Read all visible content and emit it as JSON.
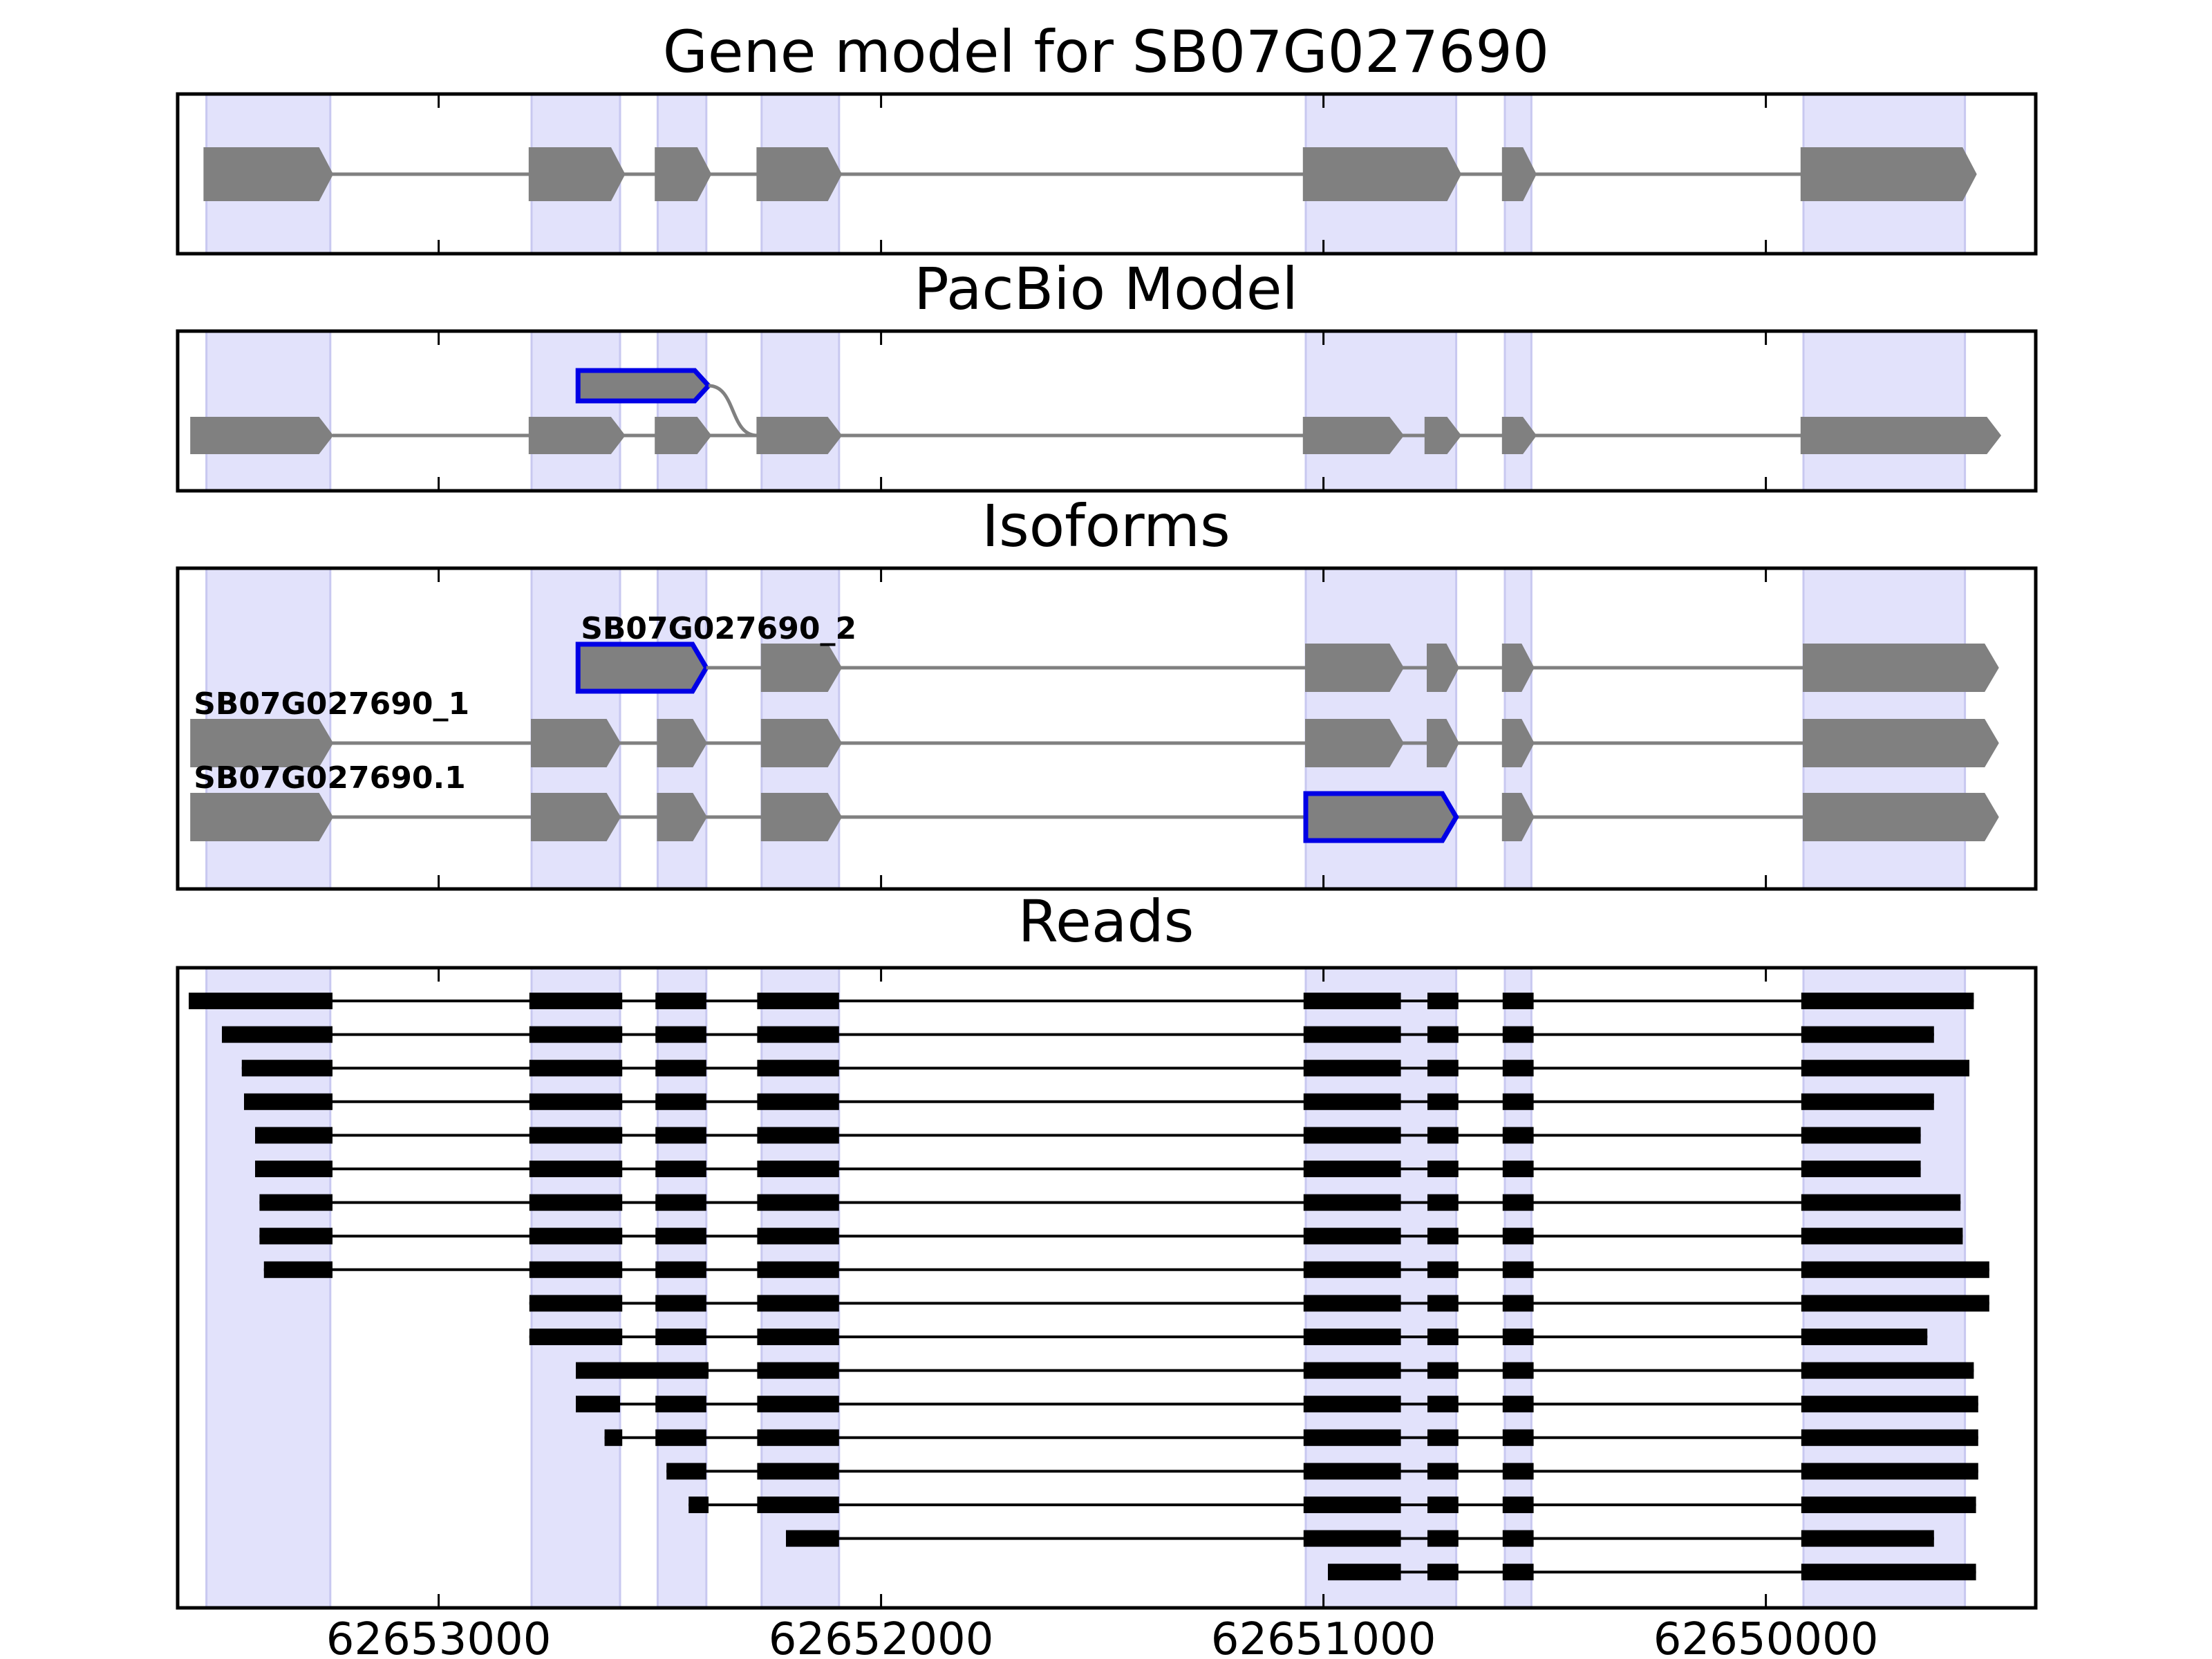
{
  "colors": {
    "exon_band": "#e2e2fb",
    "exon_band_edge": "#c8c8f0",
    "feature_fill": "#808080",
    "intron_line": "#808080",
    "highlight": "#0000e6",
    "read": "#000000",
    "frame": "#000000"
  },
  "x_ticks": [
    {
      "value": 62653000,
      "label": "62653000"
    },
    {
      "value": 62652000,
      "label": "62652000"
    },
    {
      "value": 62651000,
      "label": "62651000"
    },
    {
      "value": 62650000,
      "label": "62650000"
    }
  ],
  "exon_bands": [
    [
      62653525,
      62653245
    ],
    [
      62652790,
      62652590
    ],
    [
      62652505,
      62652395
    ],
    [
      62652270,
      62652095
    ],
    [
      62651040,
      62650700
    ],
    [
      62650590,
      62650530
    ],
    [
      62649915,
      62649550
    ]
  ],
  "panels": [
    {
      "id": "gene-model",
      "title": "Gene model for SB07G027690",
      "tracks": [
        {
          "label": "",
          "strand": "-",
          "exons": [
            [
              62653530,
              62653240
            ],
            [
              62652795,
              62652580
            ],
            [
              62652510,
              62652385
            ],
            [
              62652280,
              62652090
            ],
            [
              62651045,
              62650690
            ],
            [
              62650595,
              62650520
            ],
            [
              62649920,
              62649525
            ]
          ]
        }
      ]
    },
    {
      "id": "pacbio-model",
      "title": "PacBio Model",
      "tracks": [
        {
          "label": "",
          "strand": "-",
          "highlight_exons": [
            0
          ],
          "exons": [
            [
              62652685,
              62652390
            ]
          ]
        },
        {
          "label": "",
          "strand": "-",
          "exons": [
            [
              62653560,
              62653240
            ],
            [
              62652795,
              62652580
            ],
            [
              62652510,
              62652385
            ],
            [
              62652280,
              62652090
            ],
            [
              62651045,
              62650820
            ],
            [
              62650770,
              62650690
            ],
            [
              62650595,
              62650520
            ],
            [
              62649920,
              62649470
            ]
          ]
        }
      ]
    },
    {
      "id": "isoforms",
      "title": "Isoforms",
      "tracks": [
        {
          "label": "SB07G027690_2",
          "strand": "-",
          "highlight_exons": [
            0
          ],
          "exons": [
            [
              62652685,
              62652395
            ],
            [
              62652270,
              62652090
            ],
            [
              62651040,
              62650820
            ],
            [
              62650765,
              62650695
            ],
            [
              62650595,
              62650525
            ],
            [
              62649915,
              62649475
            ]
          ]
        },
        {
          "label": "SB07G027690_1",
          "strand": "-",
          "exons": [
            [
              62653560,
              62653240
            ],
            [
              62652790,
              62652590
            ],
            [
              62652505,
              62652395
            ],
            [
              62652270,
              62652090
            ],
            [
              62651040,
              62650820
            ],
            [
              62650765,
              62650695
            ],
            [
              62650595,
              62650525
            ],
            [
              62649915,
              62649475
            ]
          ]
        },
        {
          "label": "SB07G027690.1",
          "strand": "-",
          "highlight_exons": [
            4
          ],
          "exons": [
            [
              62653560,
              62653240
            ],
            [
              62652790,
              62652590
            ],
            [
              62652505,
              62652395
            ],
            [
              62652270,
              62652090
            ],
            [
              62651040,
              62650700
            ],
            [
              62650595,
              62650525
            ],
            [
              62649915,
              62649475
            ]
          ]
        }
      ]
    },
    {
      "id": "reads",
      "title": "Reads",
      "reads": [
        [
          [
            62653565,
            62653240
          ],
          [
            62652795,
            62652585
          ],
          [
            62652510,
            62652395
          ],
          [
            62652280,
            62652095
          ],
          [
            62651045,
            62650825
          ],
          [
            62650765,
            62650695
          ],
          [
            62650595,
            62650525
          ],
          [
            62649920,
            62649530
          ]
        ],
        [
          [
            62653490,
            62653240
          ],
          [
            62652795,
            62652585
          ],
          [
            62652510,
            62652395
          ],
          [
            62652280,
            62652095
          ],
          [
            62651045,
            62650825
          ],
          [
            62650765,
            62650695
          ],
          [
            62650595,
            62650525
          ],
          [
            62649920,
            62649620
          ]
        ],
        [
          [
            62653445,
            62653240
          ],
          [
            62652795,
            62652585
          ],
          [
            62652510,
            62652395
          ],
          [
            62652280,
            62652095
          ],
          [
            62651045,
            62650825
          ],
          [
            62650765,
            62650695
          ],
          [
            62650595,
            62650525
          ],
          [
            62649920,
            62649540
          ]
        ],
        [
          [
            62653440,
            62653240
          ],
          [
            62652795,
            62652585
          ],
          [
            62652510,
            62652395
          ],
          [
            62652280,
            62652095
          ],
          [
            62651045,
            62650825
          ],
          [
            62650765,
            62650695
          ],
          [
            62650595,
            62650525
          ],
          [
            62649920,
            62649620
          ]
        ],
        [
          [
            62653415,
            62653240
          ],
          [
            62652795,
            62652585
          ],
          [
            62652510,
            62652395
          ],
          [
            62652280,
            62652095
          ],
          [
            62651045,
            62650825
          ],
          [
            62650765,
            62650695
          ],
          [
            62650595,
            62650525
          ],
          [
            62649920,
            62649650
          ]
        ],
        [
          [
            62653415,
            62653240
          ],
          [
            62652795,
            62652585
          ],
          [
            62652510,
            62652395
          ],
          [
            62652280,
            62652095
          ],
          [
            62651045,
            62650825
          ],
          [
            62650765,
            62650695
          ],
          [
            62650595,
            62650525
          ],
          [
            62649920,
            62649650
          ]
        ],
        [
          [
            62653405,
            62653240
          ],
          [
            62652795,
            62652585
          ],
          [
            62652510,
            62652395
          ],
          [
            62652280,
            62652095
          ],
          [
            62651045,
            62650825
          ],
          [
            62650765,
            62650695
          ],
          [
            62650595,
            62650525
          ],
          [
            62649920,
            62649560
          ]
        ],
        [
          [
            62653405,
            62653240
          ],
          [
            62652795,
            62652585
          ],
          [
            62652510,
            62652395
          ],
          [
            62652280,
            62652095
          ],
          [
            62651045,
            62650825
          ],
          [
            62650765,
            62650695
          ],
          [
            62650595,
            62650525
          ],
          [
            62649920,
            62649555
          ]
        ],
        [
          [
            62653395,
            62653240
          ],
          [
            62652795,
            62652585
          ],
          [
            62652510,
            62652395
          ],
          [
            62652280,
            62652095
          ],
          [
            62651045,
            62650825
          ],
          [
            62650765,
            62650695
          ],
          [
            62650595,
            62650525
          ],
          [
            62649920,
            62649495
          ]
        ],
        [
          [
            62652795,
            62652585
          ],
          [
            62652510,
            62652395
          ],
          [
            62652280,
            62652095
          ],
          [
            62651045,
            62650825
          ],
          [
            62650765,
            62650695
          ],
          [
            62650595,
            62650525
          ],
          [
            62649920,
            62649495
          ]
        ],
        [
          [
            62652795,
            62652585
          ],
          [
            62652510,
            62652395
          ],
          [
            62652280,
            62652095
          ],
          [
            62651045,
            62650825
          ],
          [
            62650765,
            62650695
          ],
          [
            62650595,
            62650525
          ],
          [
            62649920,
            62649635
          ]
        ],
        [
          [
            62652690,
            62652390
          ],
          [
            62652280,
            62652095
          ],
          [
            62651045,
            62650825
          ],
          [
            62650765,
            62650695
          ],
          [
            62650595,
            62650525
          ],
          [
            62649920,
            62649530
          ]
        ],
        [
          [
            62652690,
            62652590
          ],
          [
            62652510,
            62652395
          ],
          [
            62652280,
            62652095
          ],
          [
            62651045,
            62650825
          ],
          [
            62650765,
            62650695
          ],
          [
            62650595,
            62650525
          ],
          [
            62649920,
            62649520
          ]
        ],
        [
          [
            62652625,
            62652585
          ],
          [
            62652510,
            62652395
          ],
          [
            62652280,
            62652095
          ],
          [
            62651045,
            62650825
          ],
          [
            62650765,
            62650695
          ],
          [
            62650595,
            62650525
          ],
          [
            62649920,
            62649520
          ]
        ],
        [
          [
            62652485,
            62652395
          ],
          [
            62652280,
            62652095
          ],
          [
            62651045,
            62650825
          ],
          [
            62650765,
            62650695
          ],
          [
            62650595,
            62650525
          ],
          [
            62649920,
            62649520
          ]
        ],
        [
          [
            62652435,
            62652390
          ],
          [
            62652280,
            62652095
          ],
          [
            62651045,
            62650825
          ],
          [
            62650765,
            62650695
          ],
          [
            62650595,
            62650525
          ],
          [
            62649920,
            62649525
          ]
        ],
        [
          [
            62652215,
            62652095
          ],
          [
            62651045,
            62650825
          ],
          [
            62650765,
            62650695
          ],
          [
            62650595,
            62650525
          ],
          [
            62649920,
            62649620
          ]
        ],
        [
          [
            62650990,
            62650825
          ],
          [
            62650765,
            62650695
          ],
          [
            62650595,
            62650525
          ],
          [
            62649920,
            62649525
          ]
        ]
      ]
    }
  ]
}
